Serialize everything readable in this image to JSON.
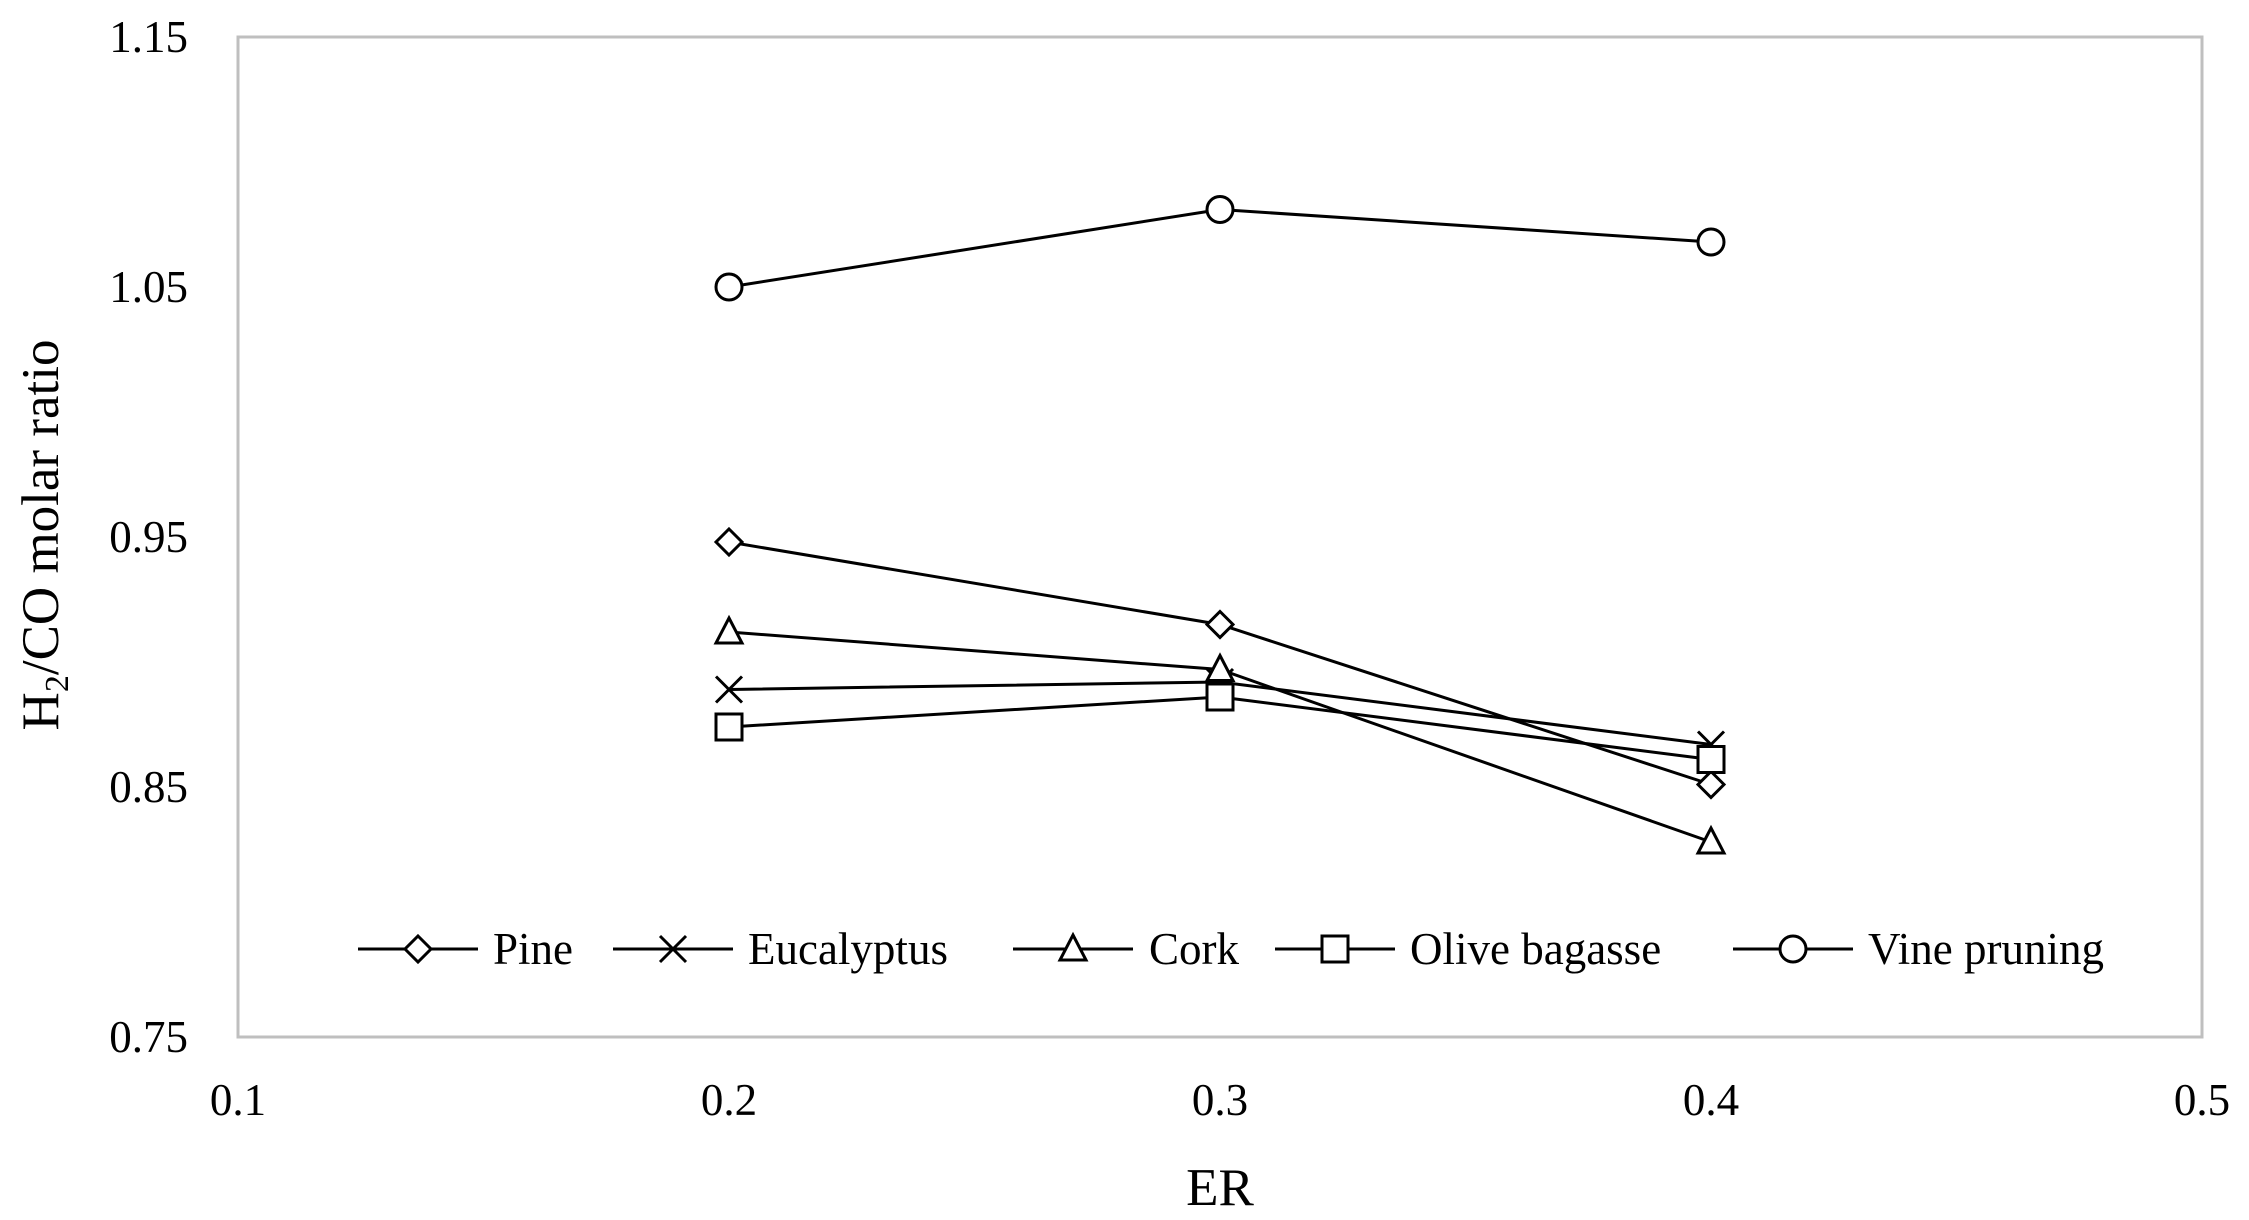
{
  "chart_data": {
    "type": "line",
    "xlabel": "ER",
    "ylabel_main": "H",
    "ylabel_sub": "2",
    "ylabel_rest": "/CO molar ratio",
    "xlim": [
      0.1,
      0.5
    ],
    "ylim": [
      0.75,
      1.15
    ],
    "x_ticks": [
      "0.1",
      "0.2",
      "0.3",
      "0.4",
      "0.5"
    ],
    "y_ticks": [
      "0.75",
      "0.85",
      "0.95",
      "1.05",
      "1.15"
    ],
    "grid": false,
    "legend_position": "bottom",
    "x": [
      0.2,
      0.3,
      0.4
    ],
    "series": [
      {
        "name": "Pine",
        "marker": "diamond",
        "values": [
          0.948,
          0.915,
          0.851
        ]
      },
      {
        "name": "Eucalyptus",
        "marker": "x",
        "values": [
          0.889,
          0.892,
          0.867
        ]
      },
      {
        "name": "Cork",
        "marker": "triangle",
        "values": [
          0.912,
          0.897,
          0.828
        ]
      },
      {
        "name": "Olive bagasse",
        "marker": "square",
        "values": [
          0.874,
          0.886,
          0.861
        ]
      },
      {
        "name": "Vine pruning",
        "marker": "circle",
        "values": [
          1.05,
          1.081,
          1.068
        ]
      }
    ]
  }
}
